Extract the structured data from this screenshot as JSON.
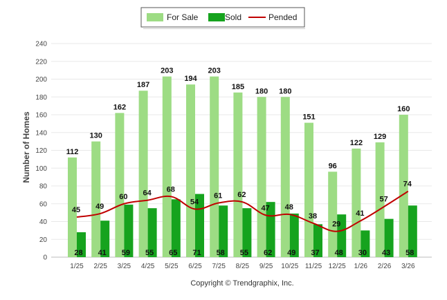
{
  "chart_data": {
    "type": "bar",
    "title": "",
    "xlabel": "",
    "ylabel": "Number of Homes",
    "ylim": [
      0,
      240
    ],
    "yticks": [
      0,
      20,
      40,
      60,
      80,
      100,
      120,
      140,
      160,
      180,
      200,
      220,
      240
    ],
    "categories": [
      "1/25",
      "2/25",
      "3/25",
      "4/25",
      "5/25",
      "6/25",
      "7/25",
      "8/25",
      "9/25",
      "10/25",
      "11/25",
      "12/25",
      "1/26",
      "2/26",
      "3/26"
    ],
    "series": [
      {
        "name": "For Sale",
        "kind": "bar",
        "color": "#9ddc84",
        "values": [
          112,
          130,
          162,
          187,
          203,
          194,
          203,
          185,
          180,
          180,
          151,
          96,
          122,
          129,
          160
        ]
      },
      {
        "name": "Sold",
        "kind": "bar",
        "color": "#16a31e",
        "values": [
          28,
          41,
          59,
          55,
          65,
          71,
          58,
          55,
          62,
          49,
          37,
          48,
          30,
          43,
          58
        ]
      },
      {
        "name": "Pended",
        "kind": "line",
        "color": "#c00000",
        "values": [
          45,
          49,
          60,
          64,
          68,
          54,
          61,
          62,
          47,
          48,
          38,
          29,
          41,
          57,
          74
        ]
      }
    ],
    "legend": [
      "For Sale",
      "Sold",
      "Pended"
    ],
    "legend_position": "top-center",
    "grid": true,
    "footer": "Copyright © Trendgraphix, Inc."
  }
}
